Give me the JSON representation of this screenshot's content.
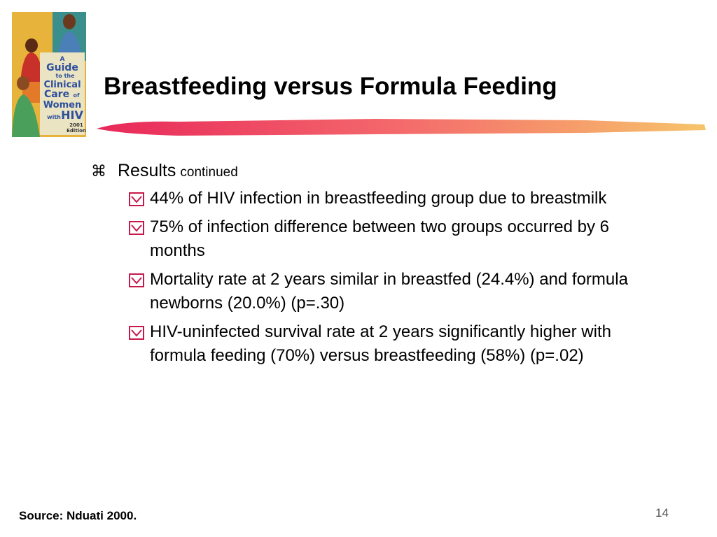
{
  "slide": {
    "title": "Breastfeeding versus Formula Feeding",
    "cover_image": {
      "icon": "book-cover-image",
      "text": [
        "A",
        "Guide",
        "to the",
        "Clinical",
        "Care",
        "of",
        "Women",
        "with",
        "HIV",
        "2001",
        "Edition"
      ]
    },
    "level1": {
      "bullet_icon": "command-key-icon",
      "label": "Results",
      "suffix": "continued"
    },
    "items": [
      {
        "text": "44% of HIV infection in breastfeeding group due to breastmilk"
      },
      {
        "text": "75% of infection difference between two groups occurred by 6 months"
      },
      {
        "text": "Mortality rate at 2 years similar in breastfed (24.4%) and formula newborns (20.0%) (p=.30)"
      },
      {
        "text": "HIV-uninfected survival rate at 2 years significantly higher with formula feeding (70%) versus breastfeeding (58%) (p=.02)"
      }
    ],
    "source": "Source: Nduati 2000.",
    "page_number": "14",
    "colors": {
      "accent_start": "#e8285a",
      "accent_end": "#f7c46a",
      "bullet_box": "#c8184a"
    }
  }
}
